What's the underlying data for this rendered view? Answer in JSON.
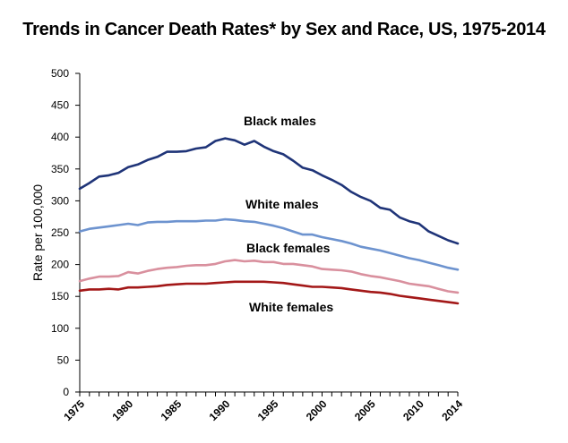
{
  "chart_data": {
    "type": "line",
    "title": "Trends in Cancer Death Rates* by Sex and Race, US, 1975-2014",
    "xlabel": "",
    "ylabel": "Rate per 100,000",
    "xlim": [
      1975,
      2014
    ],
    "ylim": [
      0,
      500
    ],
    "yticks": [
      0,
      50,
      100,
      150,
      200,
      250,
      300,
      350,
      400,
      450,
      500
    ],
    "xtick_labels": [
      1975,
      1980,
      1985,
      1990,
      1995,
      2000,
      2005,
      2010,
      2014
    ],
    "grid": false,
    "legend": "inline labels",
    "x": [
      1975,
      1976,
      1977,
      1978,
      1979,
      1980,
      1981,
      1982,
      1983,
      1984,
      1985,
      1986,
      1987,
      1988,
      1989,
      1990,
      1991,
      1992,
      1993,
      1994,
      1995,
      1996,
      1997,
      1998,
      1999,
      2000,
      2001,
      2002,
      2003,
      2004,
      2005,
      2006,
      2007,
      2008,
      2009,
      2010,
      2011,
      2012,
      2013,
      2014
    ],
    "series": [
      {
        "name": "Black males",
        "color": "#1f3478",
        "values": [
          319,
          328,
          338,
          340,
          344,
          353,
          357,
          364,
          369,
          377,
          377,
          378,
          382,
          384,
          394,
          398,
          395,
          388,
          394,
          385,
          378,
          373,
          363,
          352,
          348,
          340,
          333,
          325,
          314,
          306,
          300,
          289,
          286,
          274,
          268,
          264,
          252,
          245,
          238,
          233
        ]
      },
      {
        "name": "White males",
        "color": "#6d93cf",
        "values": [
          252,
          256,
          258,
          260,
          262,
          264,
          262,
          266,
          267,
          267,
          268,
          268,
          268,
          269,
          269,
          271,
          270,
          268,
          267,
          264,
          261,
          257,
          252,
          247,
          247,
          243,
          240,
          237,
          233,
          228,
          225,
          222,
          218,
          214,
          210,
          207,
          203,
          199,
          195,
          192
        ]
      },
      {
        "name": "Black females",
        "color": "#d9909e",
        "values": [
          174,
          178,
          181,
          181,
          182,
          188,
          186,
          190,
          193,
          195,
          196,
          198,
          199,
          199,
          201,
          205,
          207,
          205,
          206,
          204,
          204,
          201,
          201,
          199,
          197,
          193,
          192,
          191,
          189,
          185,
          182,
          180,
          177,
          174,
          170,
          168,
          166,
          162,
          158,
          156
        ]
      },
      {
        "name": "White females",
        "color": "#a31818",
        "values": [
          159,
          161,
          161,
          162,
          161,
          164,
          164,
          165,
          166,
          168,
          169,
          170,
          170,
          170,
          171,
          172,
          173,
          173,
          173,
          173,
          172,
          171,
          169,
          167,
          165,
          165,
          164,
          163,
          161,
          159,
          157,
          156,
          154,
          151,
          149,
          147,
          145,
          143,
          141,
          139
        ]
      }
    ],
    "annotations": [
      "Black males",
      "White males",
      "Black females",
      "White females"
    ]
  }
}
